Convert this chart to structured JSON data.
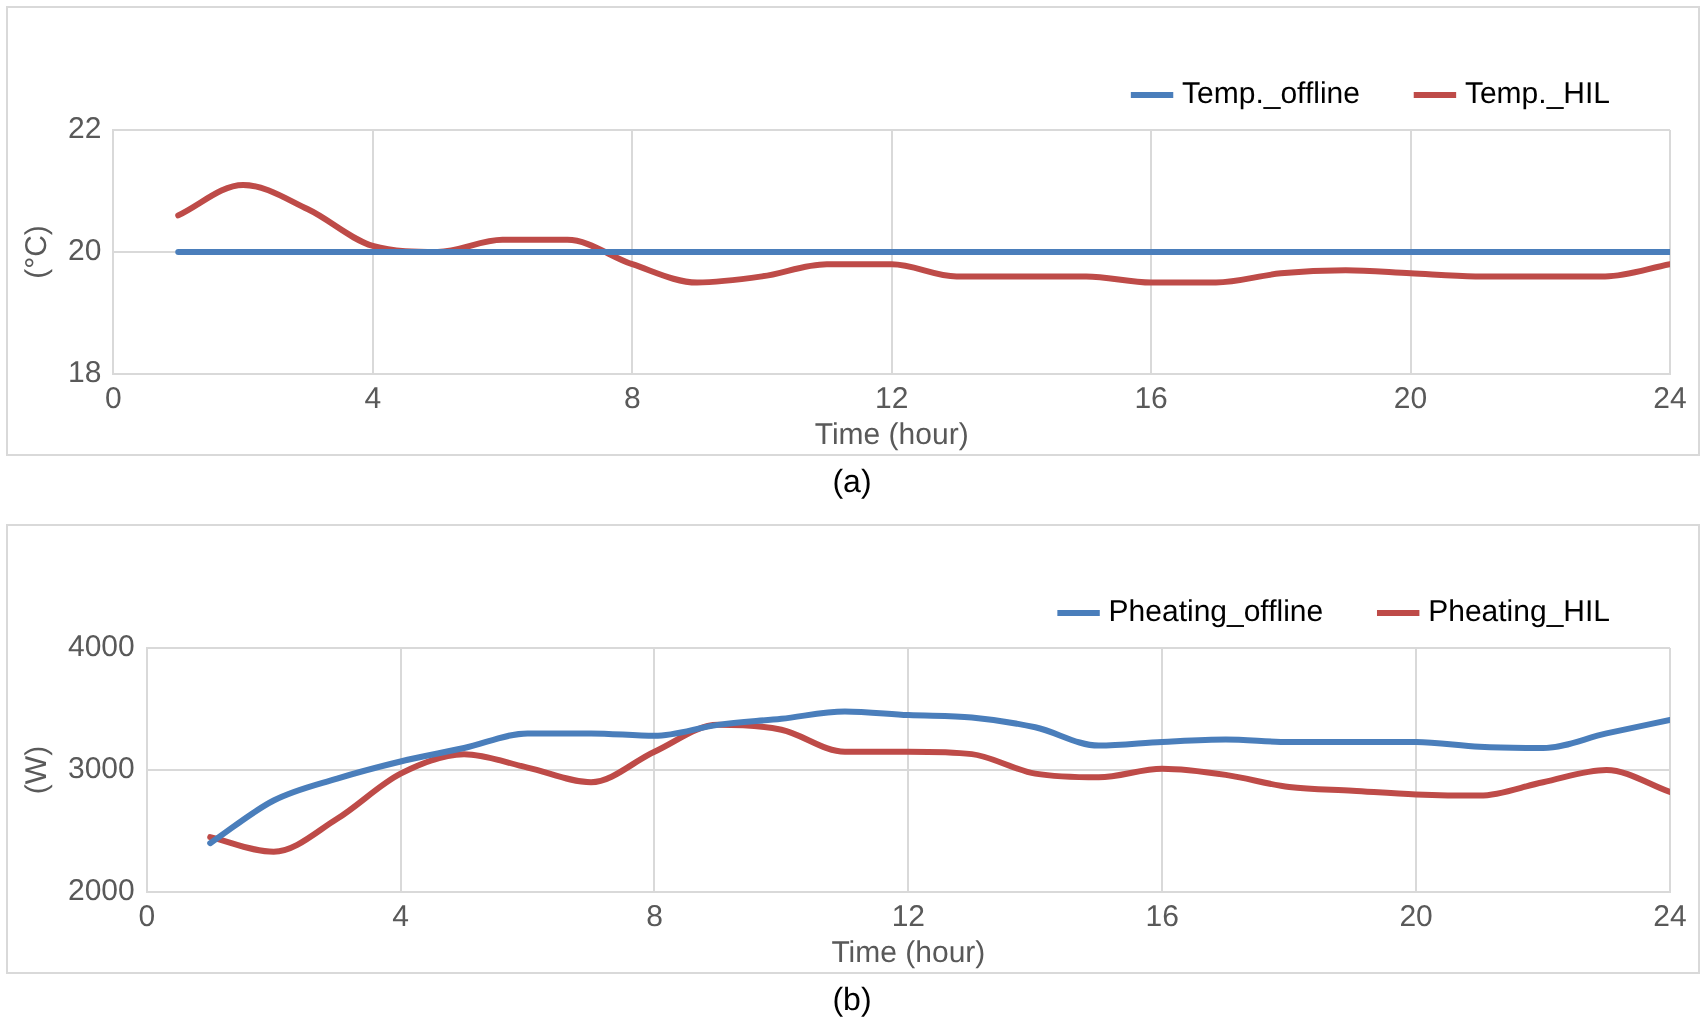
{
  "chart_data": [
    {
      "type": "line",
      "xlabel": "Time (hour)",
      "ylabel": "(°C)",
      "x": [
        1,
        2,
        3,
        4,
        5,
        6,
        7,
        8,
        9,
        10,
        11,
        12,
        13,
        14,
        15,
        16,
        17,
        18,
        19,
        20,
        21,
        22,
        23,
        24
      ],
      "series": [
        {
          "name": "Temp._offline",
          "color": "#4a7ebb",
          "values": [
            20,
            20,
            20,
            20,
            20,
            20,
            20,
            20,
            20,
            20,
            20,
            20,
            20,
            20,
            20,
            20,
            20,
            20,
            20,
            20,
            20,
            20,
            20,
            20
          ]
        },
        {
          "name": "Temp._HIL",
          "color": "#be4b48",
          "values": [
            20.6,
            21.1,
            20.7,
            20.1,
            20.0,
            20.2,
            20.2,
            19.8,
            19.5,
            19.6,
            19.8,
            19.8,
            19.6,
            19.6,
            19.6,
            19.5,
            19.5,
            19.65,
            19.7,
            19.65,
            19.6,
            19.6,
            19.6,
            19.8
          ]
        }
      ],
      "xlim": [
        0,
        24
      ],
      "xticks": [
        0,
        4,
        8,
        12,
        16,
        20,
        24
      ],
      "ylim": [
        18,
        22
      ],
      "yticks": [
        18,
        20,
        22
      ],
      "grid": true,
      "legend": "top right",
      "marker": "none",
      "line_style": "solid",
      "annotations": [
        "(a)"
      ]
    },
    {
      "type": "line",
      "xlabel": "Time (hour)",
      "ylabel": "(W)",
      "x": [
        1,
        2,
        3,
        4,
        5,
        6,
        7,
        8,
        9,
        10,
        11,
        12,
        13,
        14,
        15,
        16,
        17,
        18,
        19,
        20,
        21,
        22,
        23,
        24
      ],
      "series": [
        {
          "name": "Pheating_offline",
          "color": "#4a7ebb",
          "values": [
            2400,
            2750,
            2930,
            3070,
            3180,
            3300,
            3300,
            3280,
            3370,
            3420,
            3480,
            3450,
            3430,
            3350,
            3200,
            3230,
            3250,
            3230,
            3230,
            3230,
            3190,
            3180,
            3300,
            3410
          ]
        },
        {
          "name": "Pheating_HIL",
          "color": "#be4b48",
          "values": [
            2450,
            2330,
            2600,
            2970,
            3130,
            3020,
            2900,
            3150,
            3370,
            3330,
            3150,
            3150,
            3130,
            2970,
            2940,
            3010,
            2960,
            2860,
            2830,
            2800,
            2790,
            2900,
            3000,
            2820
          ]
        }
      ],
      "xlim": [
        0,
        24
      ],
      "xticks": [
        0,
        4,
        8,
        12,
        16,
        20,
        24
      ],
      "ylim": [
        2000,
        4000
      ],
      "yticks": [
        2000,
        3000,
        4000
      ],
      "grid": true,
      "legend": "top right",
      "marker": "none",
      "line_style": "solid",
      "annotations": [
        "(b)"
      ]
    }
  ]
}
